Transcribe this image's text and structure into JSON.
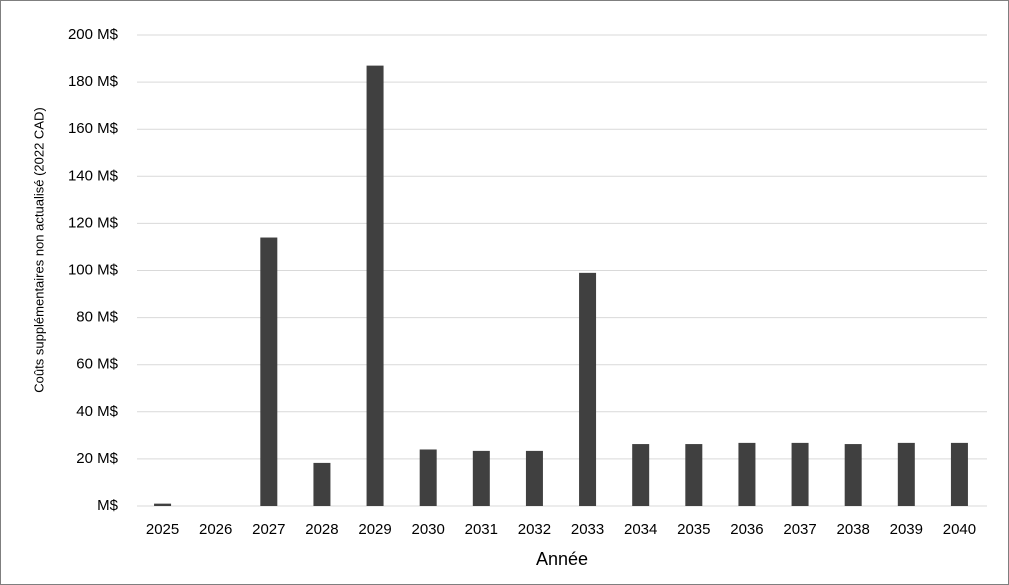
{
  "chart_data": {
    "type": "bar",
    "y_axis_label": "Coûts supplémentaires non actualisé (2022 CAD)",
    "x_axis_label": "Année",
    "categories": [
      "2025",
      "2026",
      "2027",
      "2028",
      "2029",
      "2030",
      "2031",
      "2032",
      "2033",
      "2034",
      "2035",
      "2036",
      "2037",
      "2038",
      "2039",
      "2040"
    ],
    "values": [
      1,
      0,
      114,
      18.3,
      187,
      24,
      23.4,
      23.4,
      99,
      26.3,
      26.3,
      26.8,
      26.8,
      26.3,
      26.8,
      26.8
    ],
    "color": "#404040",
    "ylim": [
      0,
      200
    ],
    "yticks": [
      {
        "value": 0,
        "label": "M$"
      },
      {
        "value": 20,
        "label": "20 M$"
      },
      {
        "value": 40,
        "label": "40 M$"
      },
      {
        "value": 60,
        "label": "60 M$"
      },
      {
        "value": 80,
        "label": "80 M$"
      },
      {
        "value": 100,
        "label": "100 M$"
      },
      {
        "value": 120,
        "label": "120 M$"
      },
      {
        "value": 140,
        "label": "140 M$"
      },
      {
        "value": 160,
        "label": "160 M$"
      },
      {
        "value": 180,
        "label": "180 M$"
      },
      {
        "value": 200,
        "label": "200 M$"
      }
    ],
    "grid": true
  }
}
